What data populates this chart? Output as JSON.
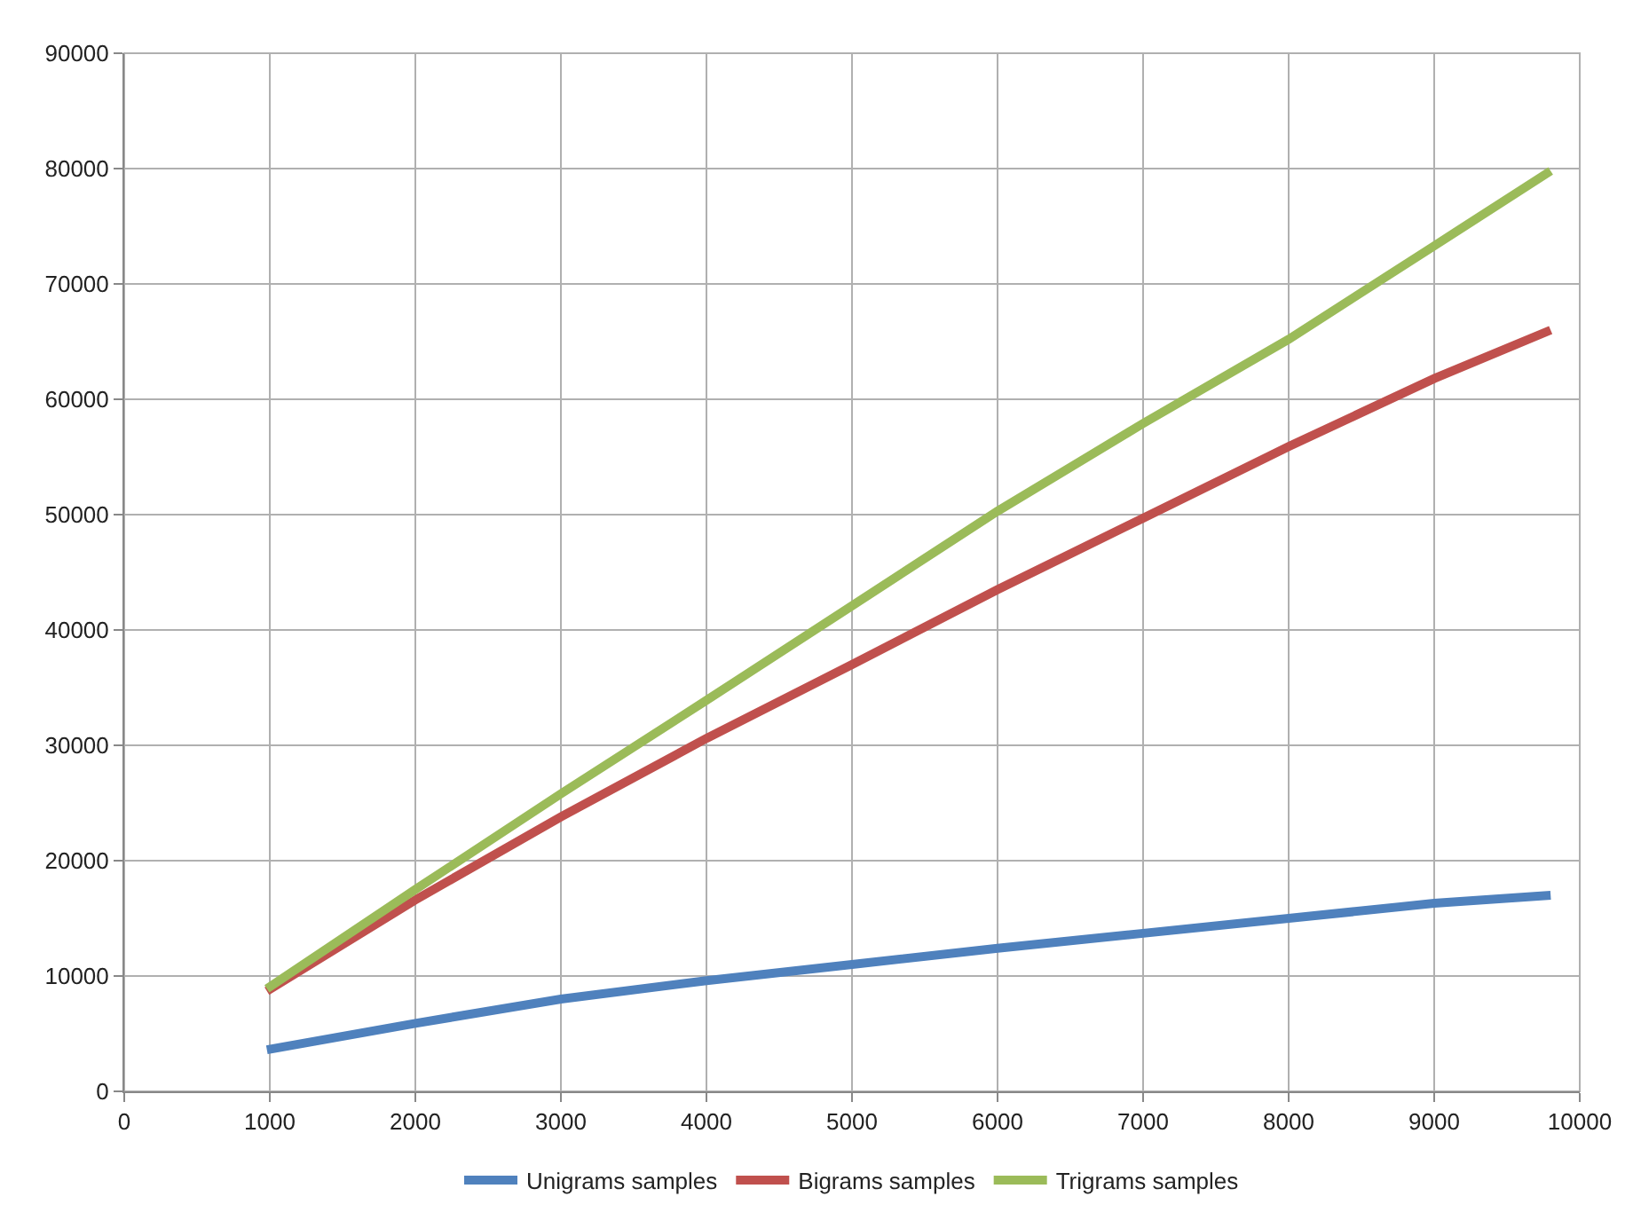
{
  "chart_data": {
    "type": "line",
    "x": [
      980,
      2000,
      3000,
      4000,
      5000,
      6000,
      7000,
      8000,
      9000,
      9800
    ],
    "series": [
      {
        "name": "Unigrams samples",
        "color": "#4f81bd",
        "values": [
          3600,
          5900,
          8000,
          9600,
          11000,
          12400,
          13700,
          15000,
          16300,
          17000
        ]
      },
      {
        "name": "Bigrams samples",
        "color": "#c0504d",
        "values": [
          8700,
          16600,
          23800,
          30600,
          37000,
          43500,
          49700,
          55900,
          61800,
          66000
        ]
      },
      {
        "name": "Trigrams samples",
        "color": "#9bbb59",
        "values": [
          8900,
          17500,
          25800,
          33900,
          42100,
          50300,
          57900,
          65200,
          73300,
          79800
        ]
      }
    ],
    "xlim": [
      0,
      10000
    ],
    "xticks": [
      0,
      1000,
      2000,
      3000,
      4000,
      5000,
      6000,
      7000,
      8000,
      9000,
      10000
    ],
    "ylim": [
      0,
      90000
    ],
    "yticks": [
      0,
      10000,
      20000,
      30000,
      40000,
      50000,
      60000,
      70000,
      80000,
      90000
    ],
    "grid": true,
    "legend": "bottom",
    "marker": "none",
    "line_style": "solid"
  }
}
